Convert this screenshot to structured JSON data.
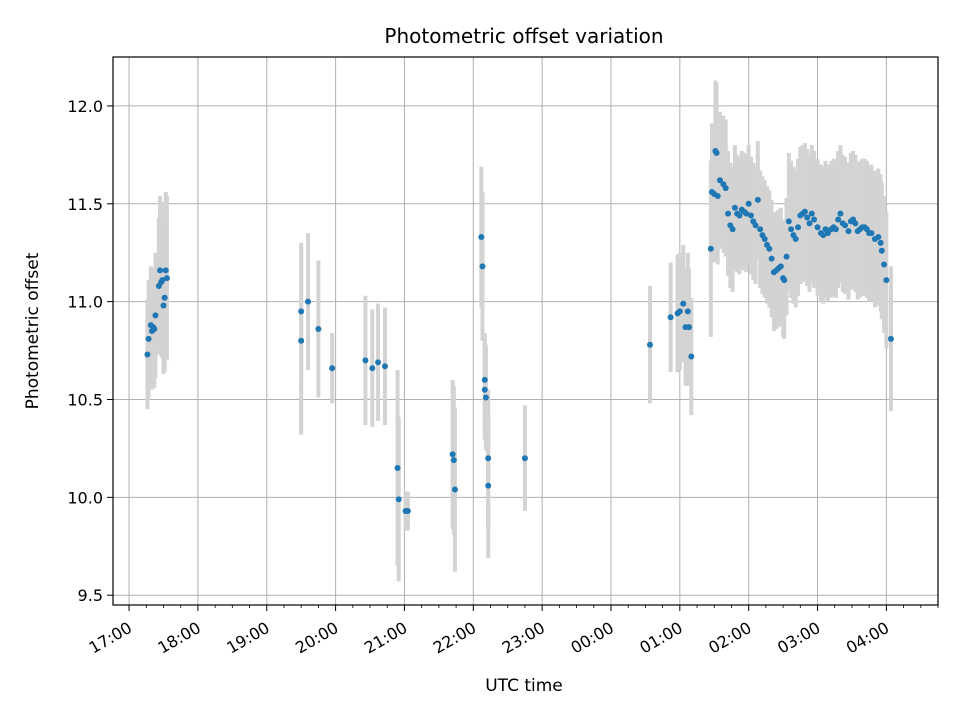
{
  "chart_data": {
    "type": "scatter",
    "title": "Photometric offset variation",
    "xlabel": "UTC time",
    "ylabel": "Photometric offset",
    "x_unit": "UTC time (HH:MM)",
    "xlim": [
      "17:00",
      "04:45"
    ],
    "ylim": [
      9.45,
      12.25
    ],
    "grid": true,
    "colors": {
      "points": "#1f77b4",
      "errorbars": "#d3d3d3",
      "grid": "#b0b0b0"
    },
    "x_ticks": [
      "17:00",
      "18:00",
      "19:00",
      "20:00",
      "21:00",
      "22:00",
      "23:00",
      "00:00",
      "01:00",
      "02:00",
      "03:00",
      "04:00"
    ],
    "y_ticks": [
      "9.5",
      "10.0",
      "10.5",
      "11.0",
      "11.5",
      "12.0"
    ],
    "series": [
      {
        "points": [
          [
            "17:16",
            10.73,
            0.28
          ],
          [
            "17:17",
            10.81,
            0.3
          ],
          [
            "17:19",
            10.88,
            0.3
          ],
          [
            "17:20",
            10.85,
            0.3
          ],
          [
            "17:21",
            10.87,
            0.3
          ],
          [
            "17:22",
            10.86,
            0.3
          ],
          [
            "17:23",
            10.93,
            0.32
          ],
          [
            "17:26",
            11.08,
            0.35
          ],
          [
            "17:27",
            11.16,
            0.38
          ],
          [
            "17:28",
            11.1,
            0.38
          ],
          [
            "17:29",
            11.11,
            0.4
          ],
          [
            "17:30",
            10.98,
            0.35
          ],
          [
            "17:31",
            11.02,
            0.38
          ],
          [
            "17:32",
            11.16,
            0.4
          ],
          [
            "17:33",
            11.12,
            0.42
          ],
          [
            "19:30",
            10.95,
            0.35
          ],
          [
            "19:30",
            10.8,
            0.48
          ],
          [
            "19:36",
            11.0,
            0.35
          ],
          [
            "19:45",
            10.86,
            0.35
          ],
          [
            "19:57",
            10.66,
            0.18
          ],
          [
            "20:26",
            10.7,
            0.33
          ],
          [
            "20:32",
            10.66,
            0.3
          ],
          [
            "20:37",
            10.69,
            0.3
          ],
          [
            "20:43",
            10.67,
            0.3
          ],
          [
            "20:54",
            10.15,
            0.5
          ],
          [
            "20:55",
            9.99,
            0.42
          ],
          [
            "21:01",
            9.93,
            0.1
          ],
          [
            "21:03",
            9.93,
            0.1
          ],
          [
            "21:42",
            10.22,
            0.38
          ],
          [
            "21:43",
            10.19,
            0.38
          ],
          [
            "21:44",
            10.04,
            0.42
          ],
          [
            "22:07",
            11.33,
            0.36
          ],
          [
            "22:08",
            11.18,
            0.38
          ],
          [
            "22:10",
            10.6,
            0.24
          ],
          [
            "22:10",
            10.55,
            0.26
          ],
          [
            "22:11",
            10.51,
            0.27
          ],
          [
            "22:13",
            10.2,
            0.35
          ],
          [
            "22:13",
            10.06,
            0.37
          ],
          [
            "22:45",
            10.2,
            0.27
          ],
          [
            "00:34",
            10.78,
            0.3
          ],
          [
            "00:52",
            10.92,
            0.28
          ],
          [
            "00:58",
            10.94,
            0.3
          ],
          [
            "01:00",
            10.95,
            0.3
          ],
          [
            "01:03",
            10.99,
            0.3
          ],
          [
            "01:05",
            10.87,
            0.3
          ],
          [
            "01:07",
            10.95,
            0.3
          ],
          [
            "01:08",
            10.87,
            0.3
          ],
          [
            "01:10",
            10.72,
            0.3
          ],
          [
            "01:27",
            11.27,
            0.45
          ],
          [
            "01:28",
            11.56,
            0.35
          ],
          [
            "01:30",
            11.55,
            0.35
          ],
          [
            "01:31",
            11.77,
            0.36
          ],
          [
            "01:32",
            11.76,
            0.36
          ],
          [
            "01:33",
            11.54,
            0.35
          ],
          [
            "01:35",
            11.62,
            0.35
          ],
          [
            "01:38",
            11.6,
            0.35
          ],
          [
            "01:40",
            11.58,
            0.35
          ],
          [
            "01:42",
            11.45,
            0.32
          ],
          [
            "01:44",
            11.39,
            0.32
          ],
          [
            "01:46",
            11.37,
            0.32
          ],
          [
            "01:48",
            11.48,
            0.32
          ],
          [
            "01:50",
            11.45,
            0.3
          ],
          [
            "01:52",
            11.44,
            0.3
          ],
          [
            "01:54",
            11.47,
            0.3
          ],
          [
            "01:56",
            11.46,
            0.3
          ],
          [
            "01:58",
            11.45,
            0.3
          ],
          [
            "02:00",
            11.5,
            0.3
          ],
          [
            "02:02",
            11.44,
            0.3
          ],
          [
            "02:04",
            11.41,
            0.3
          ],
          [
            "02:06",
            11.39,
            0.3
          ],
          [
            "02:08",
            11.52,
            0.3
          ],
          [
            "02:10",
            11.37,
            0.3
          ],
          [
            "02:12",
            11.34,
            0.3
          ],
          [
            "02:14",
            11.32,
            0.3
          ],
          [
            "02:16",
            11.29,
            0.3
          ],
          [
            "02:18",
            11.27,
            0.3
          ],
          [
            "02:20",
            11.22,
            0.3
          ],
          [
            "02:22",
            11.15,
            0.3
          ],
          [
            "02:24",
            11.16,
            0.3
          ],
          [
            "02:26",
            11.17,
            0.3
          ],
          [
            "02:28",
            11.18,
            0.3
          ],
          [
            "02:30",
            11.12,
            0.3
          ],
          [
            "02:31",
            11.11,
            0.3
          ],
          [
            "02:33",
            11.23,
            0.3
          ],
          [
            "02:35",
            11.41,
            0.35
          ],
          [
            "02:37",
            11.37,
            0.35
          ],
          [
            "02:39",
            11.34,
            0.35
          ],
          [
            "02:41",
            11.32,
            0.35
          ],
          [
            "02:43",
            11.38,
            0.35
          ],
          [
            "02:45",
            11.44,
            0.35
          ],
          [
            "02:47",
            11.45,
            0.35
          ],
          [
            "02:49",
            11.46,
            0.35
          ],
          [
            "02:51",
            11.43,
            0.35
          ],
          [
            "02:53",
            11.4,
            0.35
          ],
          [
            "02:55",
            11.45,
            0.35
          ],
          [
            "02:57",
            11.42,
            0.35
          ],
          [
            "03:00",
            11.38,
            0.35
          ],
          [
            "03:03",
            11.35,
            0.35
          ],
          [
            "03:05",
            11.34,
            0.35
          ],
          [
            "03:07",
            11.37,
            0.35
          ],
          [
            "03:09",
            11.35,
            0.35
          ],
          [
            "03:12",
            11.37,
            0.35
          ],
          [
            "03:14",
            11.38,
            0.35
          ],
          [
            "03:16",
            11.37,
            0.35
          ],
          [
            "03:18",
            11.42,
            0.35
          ],
          [
            "03:20",
            11.45,
            0.35
          ],
          [
            "03:22",
            11.4,
            0.35
          ],
          [
            "03:24",
            11.39,
            0.35
          ],
          [
            "03:27",
            11.36,
            0.35
          ],
          [
            "03:29",
            11.41,
            0.35
          ],
          [
            "03:31",
            11.42,
            0.35
          ],
          [
            "03:33",
            11.4,
            0.35
          ],
          [
            "03:35",
            11.36,
            0.35
          ],
          [
            "03:37",
            11.37,
            0.35
          ],
          [
            "03:39",
            11.38,
            0.35
          ],
          [
            "03:41",
            11.38,
            0.35
          ],
          [
            "03:43",
            11.37,
            0.35
          ],
          [
            "03:45",
            11.35,
            0.35
          ],
          [
            "03:47",
            11.35,
            0.35
          ],
          [
            "03:50",
            11.32,
            0.35
          ],
          [
            "03:53",
            11.33,
            0.35
          ],
          [
            "03:55",
            11.3,
            0.35
          ],
          [
            "03:56",
            11.26,
            0.35
          ],
          [
            "03:58",
            11.19,
            0.35
          ],
          [
            "04:00",
            11.11,
            0.35
          ],
          [
            "04:04",
            10.81,
            0.37
          ]
        ]
      }
    ]
  }
}
